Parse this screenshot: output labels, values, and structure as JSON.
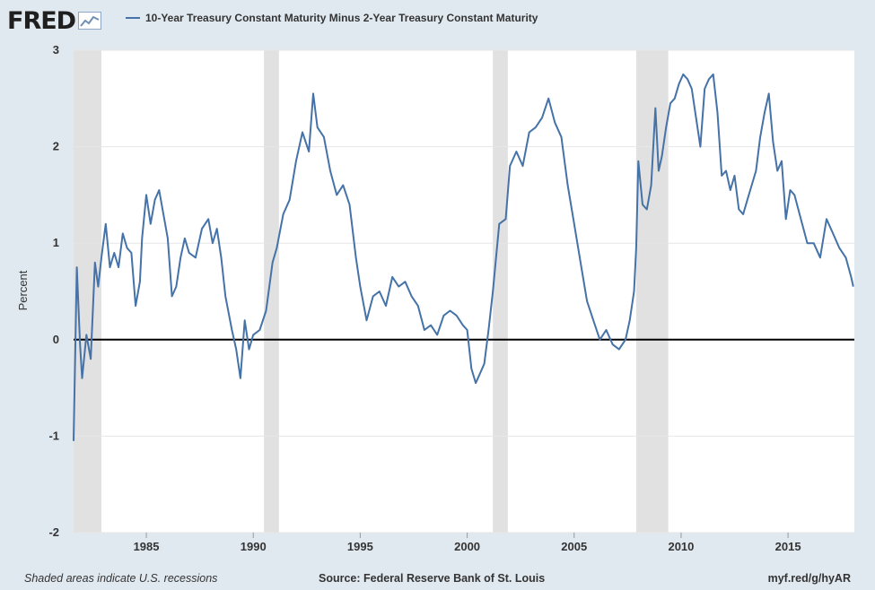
{
  "header": {
    "logo_text": "FRED",
    "logo_icon": "chart-line-icon",
    "series_label": "10-Year Treasury Constant Maturity Minus 2-Year Treasury Constant Maturity"
  },
  "footer": {
    "note": "Shaded areas indicate U.S. recessions",
    "source": "Source: Federal Reserve Bank of St. Louis",
    "link": "myf.red/g/hyAR"
  },
  "colors": {
    "background": "#e1e9f0",
    "plot": "#ffffff",
    "line": "#4572a7",
    "recession": "#e1e1e1",
    "zero_line": "#000000"
  },
  "chart_data": {
    "type": "line",
    "ylabel": "Percent",
    "xlabel": "",
    "ylim": [
      -2,
      3
    ],
    "xlim": [
      1981.6,
      2018.1
    ],
    "yticks": [
      "3",
      "2",
      "1",
      "0",
      "-1",
      "-2"
    ],
    "xticks": [
      "1985",
      "1990",
      "1995",
      "2000",
      "2005",
      "2010",
      "2015"
    ],
    "grid": true,
    "zero_line": true,
    "recessions": [
      [
        1981.6,
        1982.9
      ],
      [
        1990.5,
        1991.2
      ],
      [
        2001.2,
        2001.9
      ],
      [
        2007.9,
        2009.4
      ]
    ],
    "series": [
      {
        "x": [
          1981.6,
          1981.75,
          1981.9,
          1982.0,
          1982.2,
          1982.4,
          1982.6,
          1982.75,
          1982.9,
          1983.1,
          1983.3,
          1983.5,
          1983.7,
          1983.9,
          1984.1,
          1984.3,
          1984.5,
          1984.7,
          1984.8,
          1985.0,
          1985.2,
          1985.4,
          1985.6,
          1985.8,
          1986.0,
          1986.2,
          1986.4,
          1986.6,
          1986.8,
          1987.0,
          1987.3,
          1987.6,
          1987.9,
          1988.1,
          1988.3,
          1988.5,
          1988.7,
          1989.0,
          1989.2,
          1989.4,
          1989.6,
          1989.8,
          1990.0,
          1990.3,
          1990.6,
          1990.9,
          1991.1,
          1991.4,
          1991.7,
          1992.0,
          1992.3,
          1992.6,
          1992.8,
          1993.0,
          1993.3,
          1993.6,
          1993.9,
          1994.2,
          1994.5,
          1994.8,
          1995.0,
          1995.3,
          1995.6,
          1995.9,
          1996.2,
          1996.5,
          1996.8,
          1997.1,
          1997.4,
          1997.7,
          1998.0,
          1998.3,
          1998.6,
          1998.9,
          1999.2,
          1999.5,
          1999.8,
          2000.0,
          2000.2,
          2000.4,
          2000.6,
          2000.8,
          2001.0,
          2001.2,
          2001.5,
          2001.8,
          2002.0,
          2002.3,
          2002.6,
          2002.9,
          2003.2,
          2003.5,
          2003.8,
          2004.1,
          2004.4,
          2004.7,
          2005.0,
          2005.3,
          2005.6,
          2005.9,
          2006.2,
          2006.5,
          2006.8,
          2007.1,
          2007.4,
          2007.6,
          2007.8,
          2007.9,
          2008.0,
          2008.2,
          2008.4,
          2008.6,
          2008.8,
          2008.95,
          2009.1,
          2009.3,
          2009.5,
          2009.7,
          2009.9,
          2010.1,
          2010.3,
          2010.5,
          2010.7,
          2010.9,
          2011.1,
          2011.3,
          2011.5,
          2011.7,
          2011.9,
          2012.1,
          2012.3,
          2012.5,
          2012.7,
          2012.9,
          2013.1,
          2013.3,
          2013.5,
          2013.7,
          2013.9,
          2014.1,
          2014.3,
          2014.5,
          2014.7,
          2014.9,
          2015.1,
          2015.3,
          2015.6,
          2015.9,
          2016.2,
          2016.5,
          2016.8,
          2017.1,
          2017.4,
          2017.7,
          2017.95,
          2018.05
        ],
        "y": [
          -1.05,
          0.75,
          -0.05,
          -0.4,
          0.05,
          -0.2,
          0.8,
          0.55,
          0.85,
          1.2,
          0.75,
          0.9,
          0.75,
          1.1,
          0.95,
          0.9,
          0.35,
          0.6,
          1.05,
          1.5,
          1.2,
          1.45,
          1.55,
          1.3,
          1.05,
          0.45,
          0.55,
          0.85,
          1.05,
          0.9,
          0.85,
          1.15,
          1.25,
          1.0,
          1.15,
          0.85,
          0.45,
          0.1,
          -0.1,
          -0.4,
          0.2,
          -0.1,
          0.05,
          0.1,
          0.3,
          0.8,
          0.95,
          1.3,
          1.45,
          1.85,
          2.15,
          1.95,
          2.55,
          2.2,
          2.1,
          1.75,
          1.5,
          1.6,
          1.4,
          0.85,
          0.55,
          0.2,
          0.45,
          0.5,
          0.35,
          0.65,
          0.55,
          0.6,
          0.45,
          0.35,
          0.1,
          0.15,
          0.05,
          0.25,
          0.3,
          0.25,
          0.15,
          0.1,
          -0.3,
          -0.45,
          -0.35,
          -0.25,
          0.1,
          0.5,
          1.2,
          1.25,
          1.8,
          1.95,
          1.8,
          2.15,
          2.2,
          2.3,
          2.5,
          2.25,
          2.1,
          1.6,
          1.2,
          0.8,
          0.4,
          0.2,
          0.0,
          0.1,
          -0.05,
          -0.1,
          0.0,
          0.2,
          0.5,
          0.95,
          1.85,
          1.4,
          1.35,
          1.6,
          2.4,
          1.75,
          1.9,
          2.2,
          2.45,
          2.5,
          2.65,
          2.75,
          2.7,
          2.6,
          2.3,
          2.0,
          2.6,
          2.7,
          2.75,
          2.35,
          1.7,
          1.75,
          1.55,
          1.7,
          1.35,
          1.3,
          1.45,
          1.6,
          1.75,
          2.1,
          2.35,
          2.55,
          2.05,
          1.75,
          1.85,
          1.25,
          1.55,
          1.5,
          1.25,
          1.0,
          1.0,
          0.85,
          1.25,
          1.1,
          0.95,
          0.85,
          0.65,
          0.55
        ]
      }
    ]
  }
}
